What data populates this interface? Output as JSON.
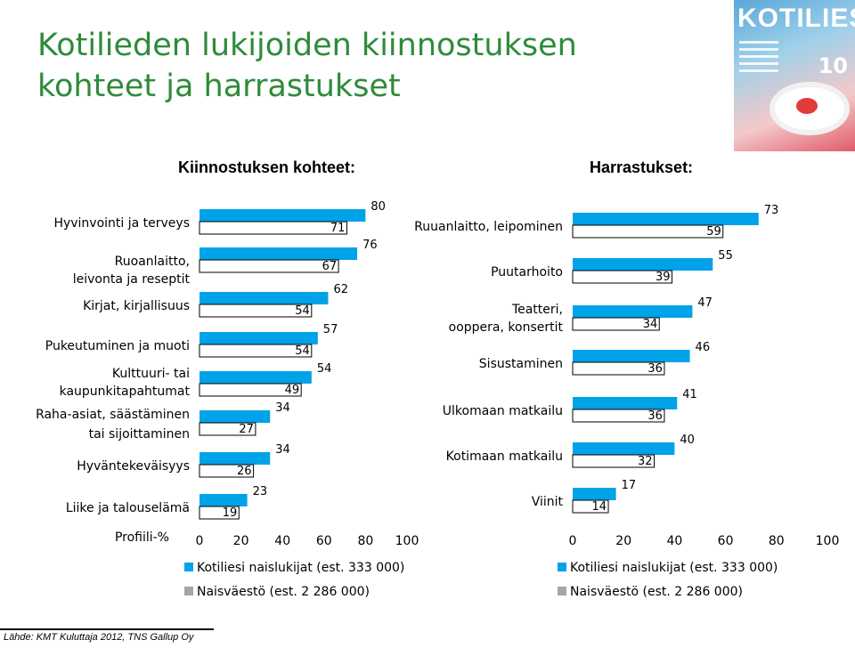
{
  "title_line1": "Kotilieden lukijoiden kiinnostuksen",
  "title_line2": "kohteet ja harrastukset",
  "cover": {
    "masthead": "KOTILIESI",
    "issue_number": "10",
    "colors": {
      "sky": "#5aa8d8",
      "accent": "#e05a6a"
    }
  },
  "source": "Lähde: KMT Kuluttaja 2012, TNS Gallup Oy",
  "colors": {
    "title": "#2e8b3a",
    "readers": "#00a2e8",
    "population": "#a6a6a6",
    "outline": "#000000"
  },
  "chart_data": [
    {
      "type": "bar",
      "orientation": "horizontal",
      "title": "Kiinnostuksen kohteet:",
      "categories": [
        "Hyvinvointi ja terveys",
        "Ruoanlaitto, leivonta ja reseptit",
        "Kirjat, kirjallisuus",
        "Pukeutuminen ja muoti",
        "Kulttuuri- tai kaupunkitapahtumat",
        "Raha-asiat, säästäminen tai sijoittaminen",
        "Hyväntekeväisyys",
        "Liike ja talouselämä"
      ],
      "series": [
        {
          "name": "Kotiliesi naislukijat (est. 333 000)",
          "values": [
            80,
            76,
            62,
            57,
            54,
            34,
            34,
            23
          ]
        },
        {
          "name": "Naisväestö (est. 2 286 000)",
          "values": [
            71,
            67,
            54,
            54,
            49,
            27,
            26,
            19
          ]
        }
      ],
      "xlabel": "Profiili-%",
      "xlim": [
        0,
        100
      ],
      "xticks": [
        "0",
        "20",
        "40",
        "60",
        "80",
        "100"
      ],
      "legend": "bottom"
    },
    {
      "type": "bar",
      "orientation": "horizontal",
      "title": "Harrastukset:",
      "categories": [
        "Ruuanlaitto, leipominen",
        "Puutarhoito",
        "Teatteri, ooppera, konsertit",
        "Sisustaminen",
        "Ulkomaan matkailu",
        "Kotimaan matkailu",
        "Viinit"
      ],
      "series": [
        {
          "name": "Kotiliesi naislukijat (est. 333 000)",
          "values": [
            73,
            55,
            47,
            46,
            41,
            40,
            17
          ]
        },
        {
          "name": "Naisväestö (est. 2 286 000)",
          "values": [
            59,
            39,
            34,
            36,
            36,
            32,
            14
          ]
        }
      ],
      "xlabel": "",
      "xlim": [
        0,
        100
      ],
      "xticks": [
        "0",
        "20",
        "40",
        "60",
        "80",
        "100"
      ],
      "legend": "bottom"
    }
  ]
}
